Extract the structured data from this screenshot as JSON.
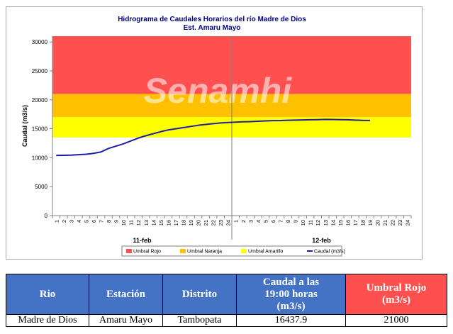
{
  "chart_data": {
    "type": "line",
    "title": "Hidrograma de Caudales Horarios del río Madre de Dios",
    "subtitle": "Est. Amaru Mayo",
    "ylabel": "Caudal (m3/s)",
    "xlabel": "",
    "ylim": [
      0,
      31000
    ],
    "yticks": [
      0,
      5000,
      10000,
      15000,
      20000,
      25000,
      30000
    ],
    "grid": false,
    "legend_position": "bottom",
    "x_hour_labels": [
      "1",
      "2",
      "3",
      "4",
      "5",
      "6",
      "7",
      "8",
      "9",
      "10",
      "11",
      "12",
      "13",
      "14",
      "15",
      "16",
      "17",
      "18",
      "19",
      "20",
      "21",
      "22",
      "23",
      "24",
      "1",
      "2",
      "3",
      "4",
      "5",
      "6",
      "7",
      "8",
      "9",
      "10",
      "11",
      "12",
      "13",
      "14",
      "15",
      "16",
      "17",
      "18",
      "19",
      "20",
      "21",
      "22",
      "23",
      "24"
    ],
    "day_labels": [
      "11-feb",
      "12-feb"
    ],
    "thresholds": [
      {
        "name": "Umbral Rojo",
        "from": 21000,
        "to": 31000,
        "color": "#ff5050"
      },
      {
        "name": "Umbral Naranja",
        "from": 17000,
        "to": 21000,
        "color": "#ffc000"
      },
      {
        "name": "Umbral Amarillo",
        "from": 13500,
        "to": 17000,
        "color": "#ffff00"
      }
    ],
    "series": [
      {
        "name": "Caudal (m3/s)",
        "color": "#1f1fa6",
        "values": [
          10400,
          10420,
          10450,
          10520,
          10600,
          10750,
          11000,
          11600,
          12000,
          12400,
          12900,
          13400,
          13800,
          14150,
          14500,
          14800,
          15000,
          15200,
          15400,
          15600,
          15750,
          15880,
          16000,
          16080,
          16150,
          16200,
          16230,
          16300,
          16350,
          16400,
          16420,
          16470,
          16500,
          16520,
          16550,
          16580,
          16620,
          16600,
          16580,
          16550,
          16500,
          16450,
          16437.9
        ]
      }
    ]
  },
  "watermark": "Senamhi",
  "table": {
    "headers": {
      "rio": "Rio",
      "estacion": "Estación",
      "distrito": "Distrito",
      "caudal_line1": "Caudal a las",
      "caudal_line2": "19:00 horas",
      "caudal_unit": "(m3/s)",
      "umbral_line1": "Umbral Rojo",
      "umbral_unit": "(m3/s)"
    },
    "row": {
      "rio": "Madre de Dios",
      "estacion": "Amaru Mayo",
      "distrito": "Tambopata",
      "caudal": "16437.9",
      "umbral": "21000"
    }
  }
}
